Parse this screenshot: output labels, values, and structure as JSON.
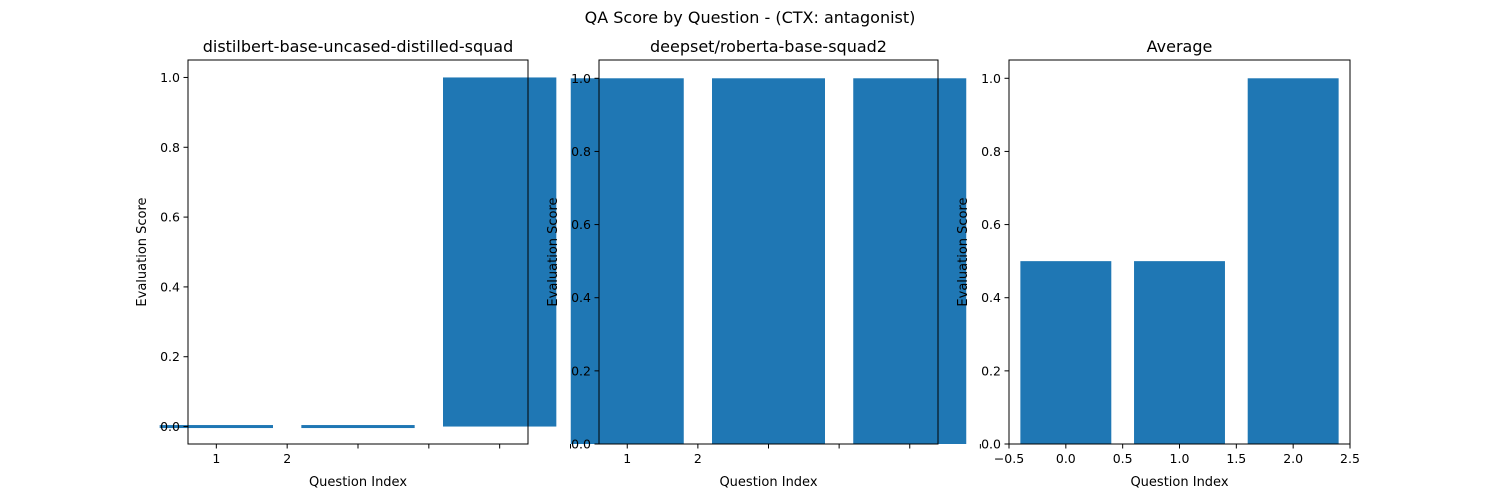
{
  "figure": {
    "suptitle": "QA Score by Question - (CTX: antagonist)",
    "bar_color": "#1f77b4"
  },
  "chart_data": [
    {
      "type": "bar",
      "title": "distilbert-base-uncased-distilled-squad",
      "xlabel": "Question Index",
      "ylabel": "Evaluation Score",
      "x": [
        0,
        1,
        2
      ],
      "values": [
        0.0,
        0.0,
        1.0
      ],
      "xlim": [
        -0.2,
        2.2
      ],
      "ylim": [
        -0.05,
        1.05
      ],
      "xticks": [
        {
          "value": 0.0,
          "label": "1"
        },
        {
          "value": 0.5,
          "label": "2"
        },
        {
          "value": 1.0,
          "label": ""
        },
        {
          "value": 1.5,
          "label": ""
        },
        {
          "value": 2.0,
          "label": ""
        },
        {
          "value": 2.5,
          "label": ""
        }
      ],
      "yticks": [
        {
          "value": 0.0,
          "label": "0.0"
        },
        {
          "value": 0.2,
          "label": "0.2"
        },
        {
          "value": 0.4,
          "label": "0.4"
        },
        {
          "value": 0.6,
          "label": "0.6"
        },
        {
          "value": 0.8,
          "label": "0.8"
        },
        {
          "value": 1.0,
          "label": "1.0"
        }
      ],
      "grid": false
    },
    {
      "type": "bar",
      "title": "deepset/roberta-base-squad2",
      "xlabel": "Question Index",
      "ylabel": "Evaluation Score",
      "x": [
        0,
        1,
        2
      ],
      "values": [
        1.0,
        1.0,
        1.0
      ],
      "xlim": [
        -0.2,
        2.2
      ],
      "ylim": [
        0.0,
        1.05
      ],
      "xticks": [
        {
          "value": 0.0,
          "label": "1"
        },
        {
          "value": 0.5,
          "label": "2"
        },
        {
          "value": 1.0,
          "label": ""
        },
        {
          "value": 1.5,
          "label": ""
        },
        {
          "value": 2.0,
          "label": ""
        },
        {
          "value": 2.5,
          "label": ""
        }
      ],
      "yticks": [
        {
          "value": 0.0,
          "label": "0.0"
        },
        {
          "value": 0.2,
          "label": "0.2"
        },
        {
          "value": 0.4,
          "label": "0.4"
        },
        {
          "value": 0.6,
          "label": "0.6"
        },
        {
          "value": 0.8,
          "label": "0.8"
        },
        {
          "value": 1.0,
          "label": "1.0"
        }
      ],
      "grid": false
    },
    {
      "type": "bar",
      "title": "Average",
      "xlabel": "Question Index",
      "ylabel": "Evaluation Score",
      "x": [
        0,
        1,
        2
      ],
      "values": [
        0.5,
        0.5,
        1.0
      ],
      "xlim": [
        -0.5,
        2.5
      ],
      "ylim": [
        0.0,
        1.05
      ],
      "xticks": [
        {
          "value": -0.5,
          "label": "−0.5"
        },
        {
          "value": 0.0,
          "label": "0.0"
        },
        {
          "value": 0.5,
          "label": "0.5"
        },
        {
          "value": 1.0,
          "label": "1.0"
        },
        {
          "value": 1.5,
          "label": "1.5"
        },
        {
          "value": 2.0,
          "label": "2.0"
        },
        {
          "value": 2.5,
          "label": "2.5"
        }
      ],
      "yticks": [
        {
          "value": 0.0,
          "label": "0.0"
        },
        {
          "value": 0.2,
          "label": "0.2"
        },
        {
          "value": 0.4,
          "label": "0.4"
        },
        {
          "value": 0.6,
          "label": "0.6"
        },
        {
          "value": 0.8,
          "label": "0.8"
        },
        {
          "value": 1.0,
          "label": "1.0"
        }
      ],
      "grid": false
    }
  ]
}
